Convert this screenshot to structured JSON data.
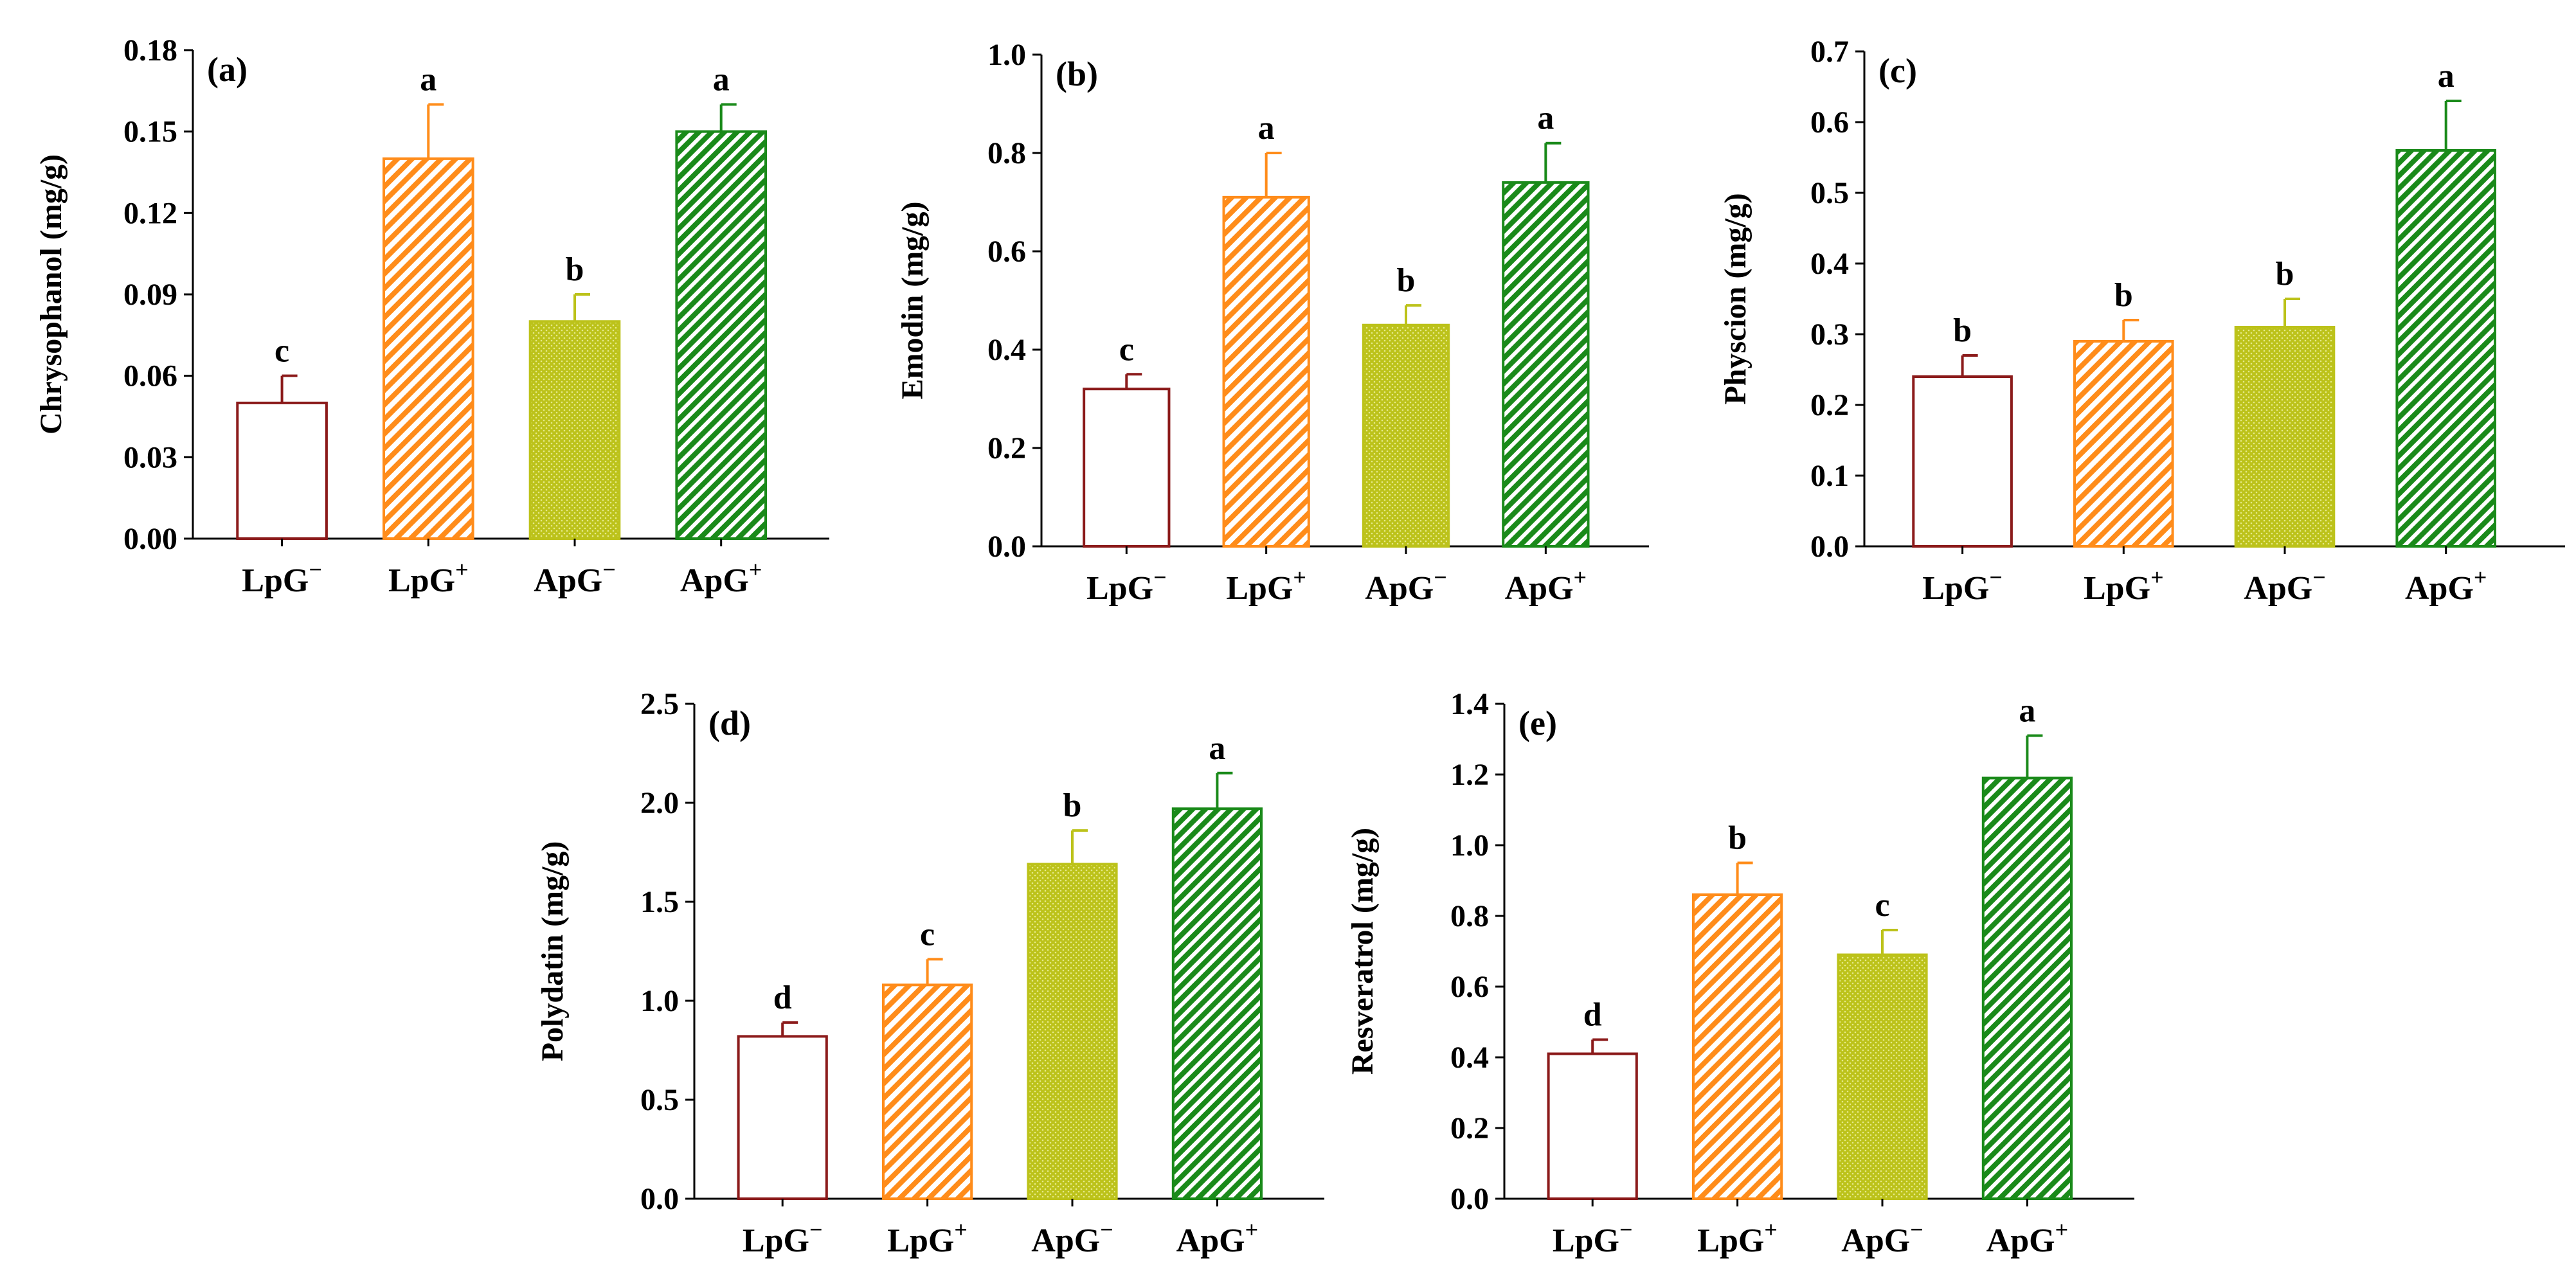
{
  "colors": {
    "LpG_minus": "#8b1a1a",
    "LpG_plus": "#ff8c1a",
    "ApG_minus": "#bcc21a",
    "ApG_plus": "#1a8a1a"
  },
  "chart_data": [
    {
      "type": "bar",
      "panel_label": "(a)",
      "ylabel": "Chrysophanol (mg/g)",
      "categories": [
        {
          "base": "LpG",
          "sup": "−"
        },
        {
          "base": "LpG",
          "sup": "+"
        },
        {
          "base": "ApG",
          "sup": "−"
        },
        {
          "base": "ApG",
          "sup": "+"
        }
      ],
      "values": [
        0.05,
        0.14,
        0.08,
        0.15
      ],
      "errors": [
        0.01,
        0.02,
        0.01,
        0.01
      ],
      "significance": [
        "c",
        "a",
        "b",
        "a"
      ],
      "ylim": [
        0,
        0.18
      ],
      "yticks": [
        "0.00",
        "0.03",
        "0.06",
        "0.09",
        "0.12",
        "0.15",
        "0.18"
      ]
    },
    {
      "type": "bar",
      "panel_label": "(b)",
      "ylabel": "Emodin (mg/g)",
      "categories": [
        {
          "base": "LpG",
          "sup": "−"
        },
        {
          "base": "LpG",
          "sup": "+"
        },
        {
          "base": "ApG",
          "sup": "−"
        },
        {
          "base": "ApG",
          "sup": "+"
        }
      ],
      "values": [
        0.32,
        0.71,
        0.45,
        0.74
      ],
      "errors": [
        0.03,
        0.09,
        0.04,
        0.08
      ],
      "significance": [
        "c",
        "a",
        "b",
        "a"
      ],
      "ylim": [
        0,
        1.0
      ],
      "yticks": [
        "0.0",
        "0.2",
        "0.4",
        "0.6",
        "0.8",
        "1.0"
      ]
    },
    {
      "type": "bar",
      "panel_label": "(c)",
      "ylabel": "Physcion (mg/g)",
      "categories": [
        {
          "base": "LpG",
          "sup": "−"
        },
        {
          "base": "LpG",
          "sup": "+"
        },
        {
          "base": "ApG",
          "sup": "−"
        },
        {
          "base": "ApG",
          "sup": "+"
        }
      ],
      "values": [
        0.24,
        0.29,
        0.31,
        0.56
      ],
      "errors": [
        0.03,
        0.03,
        0.04,
        0.07
      ],
      "significance": [
        "b",
        "b",
        "b",
        "a"
      ],
      "ylim": [
        0,
        0.7
      ],
      "yticks": [
        "0.0",
        "0.1",
        "0.2",
        "0.3",
        "0.4",
        "0.5",
        "0.6",
        "0.7"
      ]
    },
    {
      "type": "bar",
      "panel_label": "(d)",
      "ylabel": "Polydatin (mg/g)",
      "categories": [
        {
          "base": "LpG",
          "sup": "−"
        },
        {
          "base": "LpG",
          "sup": "+"
        },
        {
          "base": "ApG",
          "sup": "−"
        },
        {
          "base": "ApG",
          "sup": "+"
        }
      ],
      "values": [
        0.82,
        1.08,
        1.69,
        1.97
      ],
      "errors": [
        0.07,
        0.13,
        0.17,
        0.18
      ],
      "significance": [
        "d",
        "c",
        "b",
        "a"
      ],
      "ylim": [
        0,
        2.5
      ],
      "yticks": [
        "0.0",
        "0.5",
        "1.0",
        "1.5",
        "2.0",
        "2.5"
      ]
    },
    {
      "type": "bar",
      "panel_label": "(e)",
      "ylabel": "Resveratrol (mg/g)",
      "categories": [
        {
          "base": "LpG",
          "sup": "−"
        },
        {
          "base": "LpG",
          "sup": "+"
        },
        {
          "base": "ApG",
          "sup": "−"
        },
        {
          "base": "ApG",
          "sup": "+"
        }
      ],
      "values": [
        0.41,
        0.86,
        0.69,
        1.19
      ],
      "errors": [
        0.04,
        0.09,
        0.07,
        0.12
      ],
      "significance": [
        "d",
        "b",
        "c",
        "a"
      ],
      "ylim": [
        0,
        1.4
      ],
      "yticks": [
        "0.0",
        "0.2",
        "0.4",
        "0.6",
        "0.8",
        "1.0",
        "1.2",
        "1.4"
      ]
    }
  ]
}
